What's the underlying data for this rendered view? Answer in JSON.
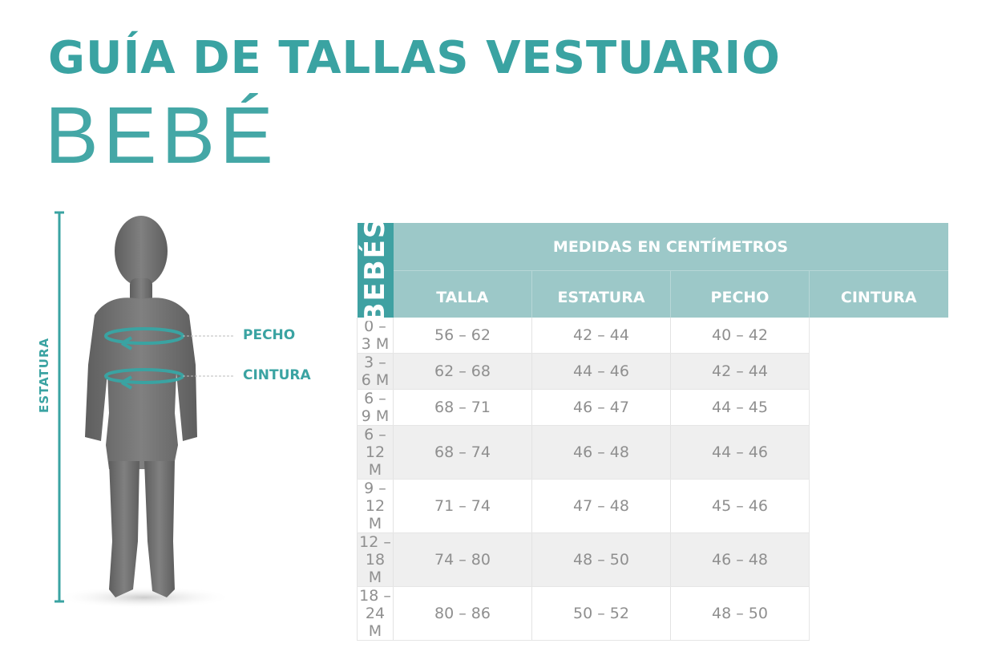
{
  "header": {
    "title": "GUÍA DE TALLAS VESTUARIO",
    "subtitle": "BEBÉ"
  },
  "figure": {
    "height_label": "ESTATURA",
    "chest_label": "PECHO",
    "waist_label": "CINTURA"
  },
  "colors": {
    "accent": "#3aa3a2",
    "header_bg": "#9cc8c8",
    "side_bg": "#3fa1a2",
    "alt_row": "#efefef",
    "mannequin": "#6f6f6f"
  },
  "table": {
    "side_label": "BEBÉS",
    "group_header": "MEDIDAS EN CENTÍMETROS",
    "columns": [
      "TALLA",
      "ESTATURA",
      "PECHO",
      "CINTURA"
    ],
    "rows": [
      [
        "0 – 3 M",
        "56 – 62",
        "42 – 44",
        "40 – 42"
      ],
      [
        "3 – 6 M",
        "62 – 68",
        "44 – 46",
        "42 – 44"
      ],
      [
        "6 – 9 M",
        "68 – 71",
        "46 – 47",
        "44 – 45"
      ],
      [
        "6 – 12 M",
        "68 – 74",
        "46 – 48",
        "44 – 46"
      ],
      [
        "9 – 12 M",
        "71 – 74",
        "47 – 48",
        "45 – 46"
      ],
      [
        "12 – 18 M",
        "74 – 80",
        "48 – 50",
        "46 – 48"
      ],
      [
        "18 – 24 M",
        "80 – 86",
        "50 – 52",
        "48 – 50"
      ]
    ]
  }
}
